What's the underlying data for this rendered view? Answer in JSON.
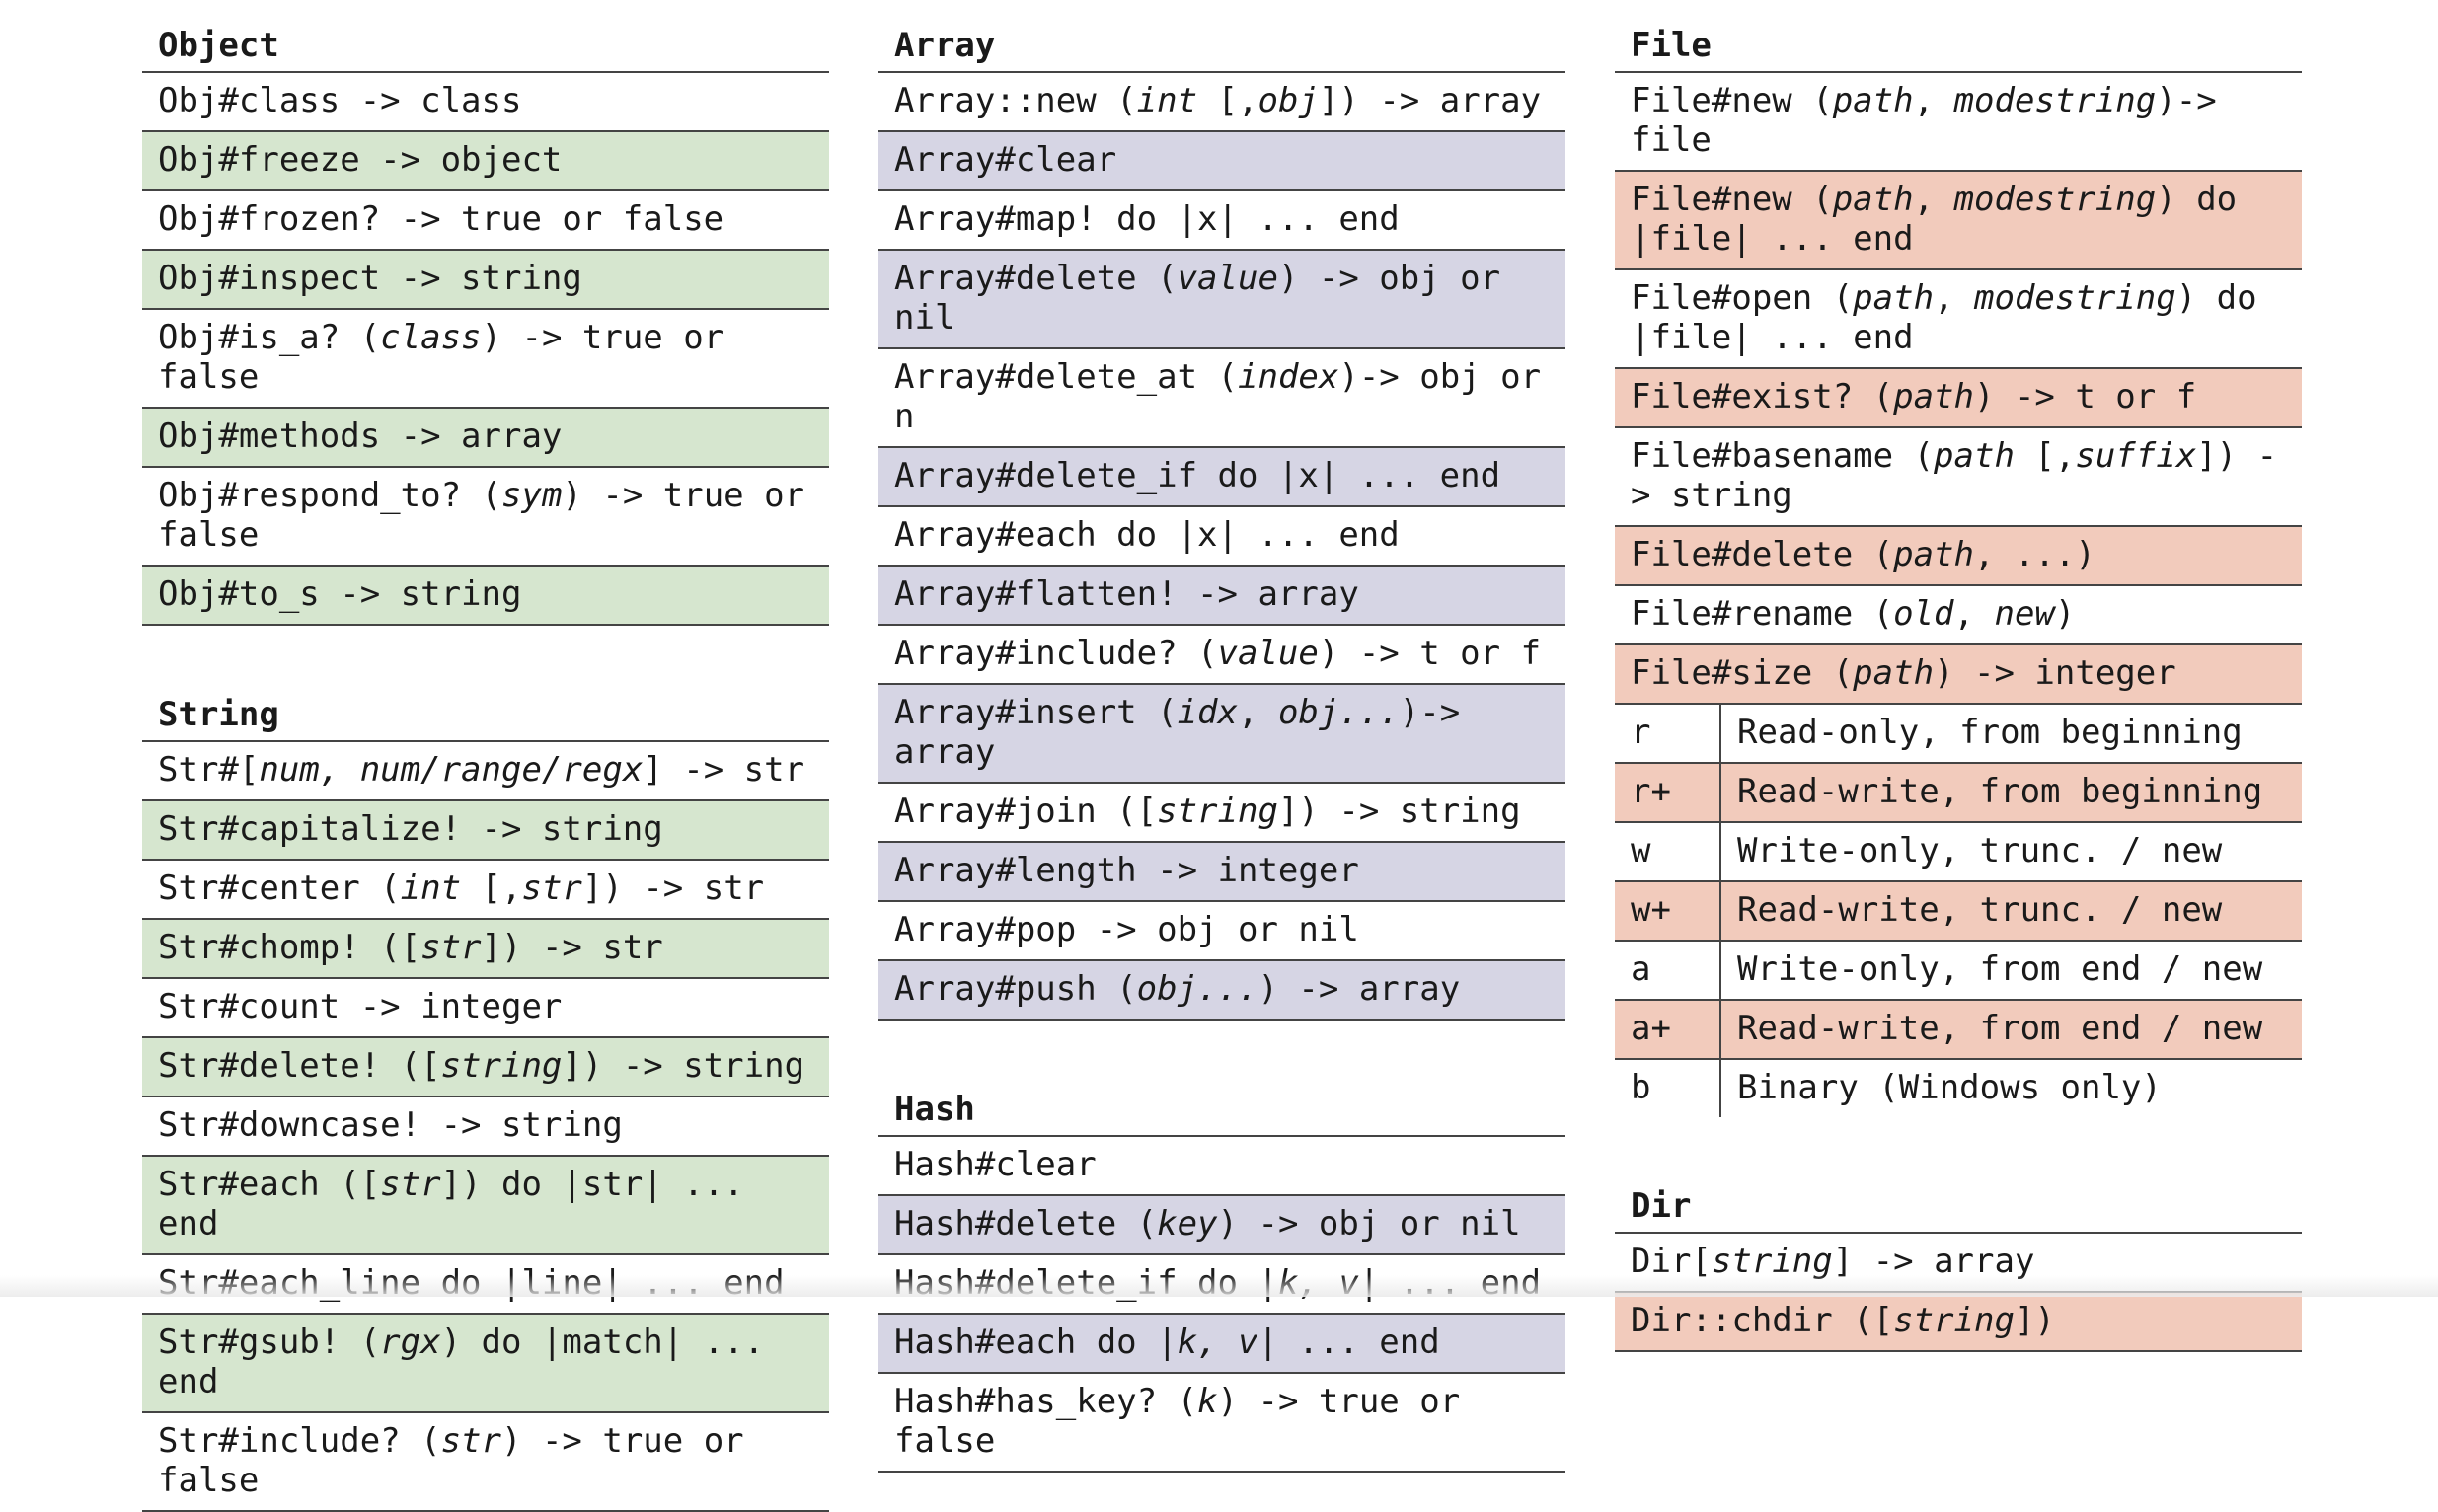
{
  "object": {
    "title": "Object",
    "rows": [
      "Obj#class -> class",
      "Obj#freeze -> object",
      "Obj#frozen? -> true or false",
      "Obj#inspect -> string",
      "Obj#is_a? (<i>class</i>) -> true or false",
      "Obj#methods -> array",
      "Obj#respond_to? (<i>sym</i>) -> true or false",
      "Obj#to_s -> string"
    ]
  },
  "string": {
    "title": "String",
    "rows": [
      "Str#[<i>num, num/range/regx</i>] -> str",
      "Str#capitalize! -> string",
      "Str#center (<i>int</i> [,<i>str</i>]) -> str",
      "Str#chomp! ([<i>str</i>]) -> str",
      "Str#count -> integer",
      "Str#delete! ([<i>string</i>]) -> string",
      "Str#downcase! -> string",
      "Str#each ([<i>str</i>]) do |str| ... end",
      "Str#each_line do |line| ... end",
      "Str#gsub! (<i>rgx</i>) do |match| ... end",
      "Str#include? (<i>str</i>) -> true or false"
    ]
  },
  "array": {
    "title": "Array",
    "rows": [
      "Array::new (<i>int</i> [,<i>obj</i>]) -> array",
      "Array#clear",
      "Array#map! do |x| ... end",
      "Array#delete (<i>value</i>) -> obj or nil",
      "Array#delete_at (<i>index</i>)-> obj or n",
      "Array#delete_if do |x| ... end",
      "Array#each do |x| ... end",
      "Array#flatten! -> array",
      "Array#include? (<i>value</i>) -> t or f",
      "Array#insert (<i>idx</i>, <i>obj...</i>)-> array",
      "Array#join ([<i>string</i>]) -> string",
      "Array#length -> integer",
      "Array#pop -> obj or nil",
      "Array#push (<i>obj...</i>) -> array"
    ]
  },
  "hash": {
    "title": "Hash",
    "rows": [
      "Hash#clear",
      "Hash#delete (<i>key</i>) -> obj or nil",
      "Hash#delete_if do |<i>k, v</i>| ... end",
      "Hash#each do |<i>k, v</i>| ... end",
      "Hash#has_key? (<i>k</i>) -> true or false"
    ]
  },
  "file": {
    "title": "File",
    "rows": [
      "File#new (<i>path</i>, <i>modestring</i>)-> file",
      "File#new (<i>path</i>, <i>modestring</i>) do |file| ... end",
      "File#open (<i>path</i>, <i>modestring</i>) do |file| ... end",
      "File#exist? (<i>path</i>) -> t or f",
      "File#basename (<i>path</i> [,<i>suffix</i>]) -> string",
      "File#delete (<i>path</i>, ...)",
      "File#rename (<i>old</i>, <i>new</i>)",
      "File#size (<i>path</i>) -> integer"
    ],
    "modes": [
      {
        "key": "r",
        "desc": "Read-only, from beginning"
      },
      {
        "key": "r+",
        "desc": "Read-write, from beginning"
      },
      {
        "key": "w",
        "desc": "Write-only, trunc. / new"
      },
      {
        "key": "w+",
        "desc": "Read-write, trunc. / new"
      },
      {
        "key": "a",
        "desc": "Write-only, from end / new"
      },
      {
        "key": "a+",
        "desc": "Read-write, from end / new"
      },
      {
        "key": "b",
        "desc": "Binary (Windows only)"
      }
    ]
  },
  "dir": {
    "title": "Dir",
    "rows": [
      "Dir[<i>string</i>] -> array",
      "Dir::chdir ([<i>string</i>])"
    ]
  },
  "colors": {
    "object_string_stripe": "#d6e6cf",
    "array_hash_stripe": "#d6d5e4",
    "file_dir_stripe": "#f2cbbc"
  }
}
